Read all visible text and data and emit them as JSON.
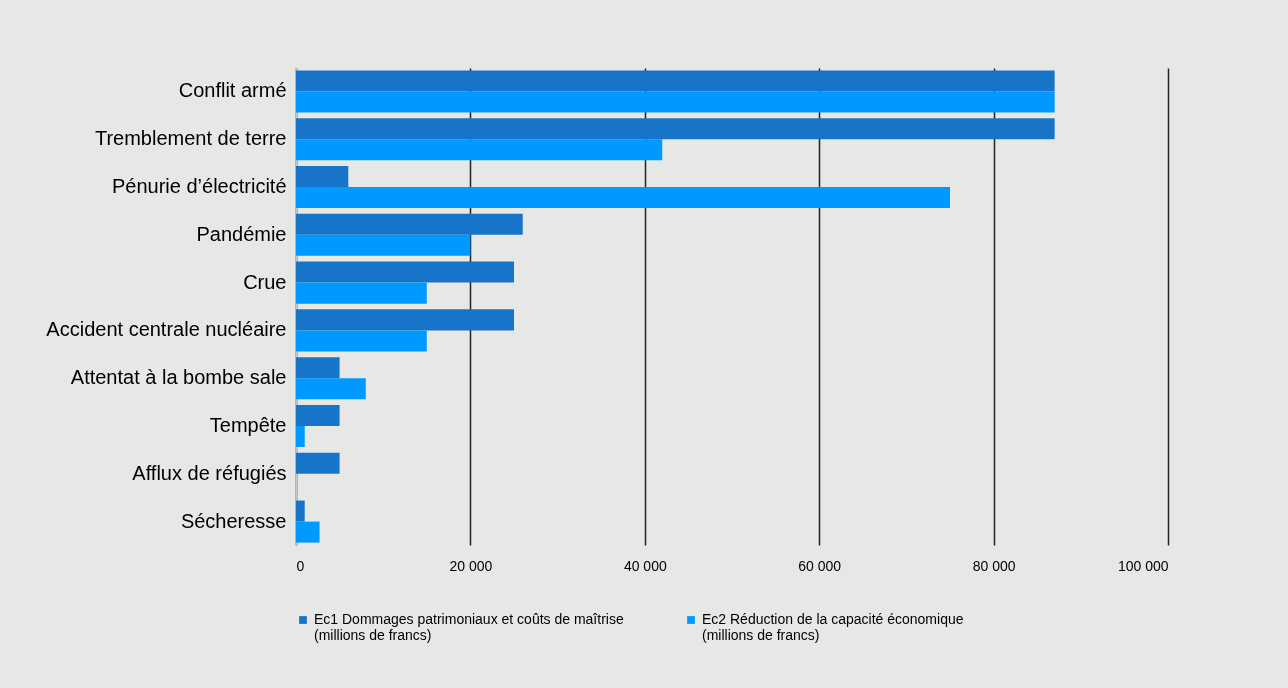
{
  "chart_data": {
    "type": "bar",
    "orientation": "horizontal",
    "categories": [
      "Conflit armé",
      "Tremblement de terre",
      "Pénurie d’électricité",
      "Pandémie",
      "Crue",
      "Accident centrale nucléaire",
      "Attentat à la bombe sale",
      "Tempête",
      "Afflux de réfugiés",
      "Sécheresse"
    ],
    "series": [
      {
        "name": "Ec1 Dommages patrimoniaux et coûts de maîtrise (millions de francs)",
        "color": "#1874c8",
        "values": [
          87000,
          87000,
          6000,
          26000,
          25000,
          25000,
          5000,
          5000,
          5000,
          1000
        ]
      },
      {
        "name": "Ec2 Réduction de la capacité économique (millions de francs)",
        "color": "#0099ff",
        "values": [
          87000,
          42000,
          75000,
          20000,
          15000,
          15000,
          8000,
          1000,
          null,
          2700
        ]
      }
    ],
    "xlim": [
      0,
      100000
    ],
    "xticks": [
      {
        "value": 0,
        "label": "0"
      },
      {
        "value": 20000,
        "label": "20 000"
      },
      {
        "value": 40000,
        "label": "40 000"
      },
      {
        "value": 60000,
        "label": "60 000"
      },
      {
        "value": 80000,
        "label": "80 000"
      },
      {
        "value": 100000,
        "label": "100 000"
      }
    ],
    "grid": "x",
    "legend": "bottom"
  }
}
